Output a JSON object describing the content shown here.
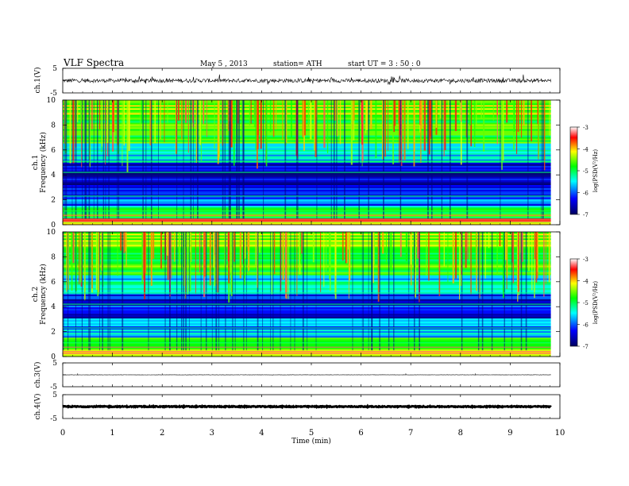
{
  "header": {
    "title": "VLF  Spectra",
    "date": "May 5  , 2013",
    "station": "station= ATH",
    "start": "start  UT  =   3  : 50 : 0"
  },
  "chart_data": [
    {
      "type": "line",
      "panel": "ch1-waveform",
      "ylabel": "ch.1(V)",
      "ylim": [
        -5,
        5
      ],
      "yticks": [
        "5",
        "-5"
      ],
      "x_range": [
        0,
        10
      ],
      "series": [
        {
          "values_note_x": "time (min)",
          "baseline": 0.0,
          "amplitude": 0.8,
          "data_end": 9.82
        }
      ]
    },
    {
      "type": "heatmap",
      "panel": "ch1-spectrogram",
      "ylabel": "ch.1\nFrequency  (kHz)",
      "ylim": [
        0,
        10
      ],
      "yticks": [
        "0",
        "2",
        "4",
        "6",
        "8",
        "10"
      ],
      "x_range": [
        0,
        9.82
      ],
      "colorbar": {
        "label": "log(PSD(V²/Hz)",
        "range": [
          -7,
          -3
        ],
        "ticks": [
          "-3",
          "-4",
          "-5",
          "-6",
          "-7"
        ]
      },
      "bands": [
        {
          "from_khz": 0.0,
          "to_khz": 1.5,
          "level": -5.2
        },
        {
          "from_khz": 1.5,
          "to_khz": 3.0,
          "level": -6.2
        },
        {
          "from_khz": 3.0,
          "to_khz": 5.0,
          "level": -6.6
        },
        {
          "from_khz": 5.0,
          "to_khz": 6.5,
          "level": -5.7
        },
        {
          "from_khz": 6.5,
          "to_khz": 8.5,
          "level": -4.9
        },
        {
          "from_khz": 8.5,
          "to_khz": 10.0,
          "level": -4.6
        }
      ]
    },
    {
      "type": "heatmap",
      "panel": "ch2-spectrogram",
      "ylabel": "ch.2\nFrequency  (kHz)",
      "ylim": [
        0,
        10
      ],
      "yticks": [
        "0",
        "2",
        "4",
        "6",
        "8",
        "10"
      ],
      "x_range": [
        0,
        9.82
      ],
      "colorbar": {
        "label": "log(PSD(V²/Hz)",
        "range": [
          -7,
          -3
        ],
        "ticks": [
          "-3",
          "-4",
          "-5",
          "-6",
          "-7"
        ]
      },
      "bands": [
        {
          "from_khz": 0.0,
          "to_khz": 1.5,
          "level": -5.0
        },
        {
          "from_khz": 1.5,
          "to_khz": 3.0,
          "level": -5.9
        },
        {
          "from_khz": 3.0,
          "to_khz": 5.0,
          "level": -6.4
        },
        {
          "from_khz": 5.0,
          "to_khz": 6.5,
          "level": -5.6
        },
        {
          "from_khz": 6.5,
          "to_khz": 8.5,
          "level": -4.9
        },
        {
          "from_khz": 8.5,
          "to_khz": 10.0,
          "level": -4.6
        }
      ]
    },
    {
      "type": "line",
      "panel": "ch3-waveform",
      "ylabel": "ch.3(V)",
      "ylim": [
        -5,
        5
      ],
      "yticks": [
        "5",
        "-5"
      ],
      "x_range": [
        0,
        10
      ],
      "series": [
        {
          "baseline": 0.0,
          "amplitude": 0.05,
          "data_end": 9.82
        }
      ]
    },
    {
      "type": "line",
      "panel": "ch4-waveform",
      "ylabel": "ch.4(V)",
      "ylim": [
        -5,
        5
      ],
      "yticks": [
        "5",
        "-5"
      ],
      "x_range": [
        0,
        10
      ],
      "series": [
        {
          "baseline": 0.0,
          "amplitude": 0.4,
          "data_end": 9.82
        }
      ]
    }
  ],
  "xaxis": {
    "label": "Time  (min)",
    "ticks": [
      "0",
      "1",
      "2",
      "3",
      "4",
      "5",
      "6",
      "7",
      "8",
      "9",
      "10"
    ],
    "range": [
      0,
      10
    ]
  },
  "colors": {
    "colormap": [
      "#000070",
      "#0000ff",
      "#00ffff",
      "#00ff00",
      "#ffff00",
      "#ff0000",
      "#ffffff"
    ],
    "line": "#000000",
    "axis": "#000000"
  }
}
